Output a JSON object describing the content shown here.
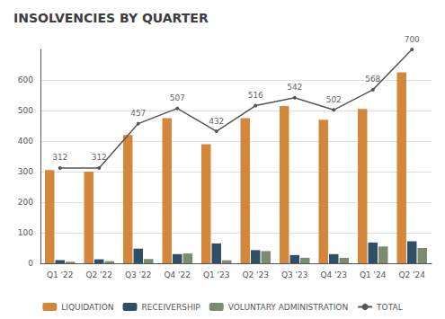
{
  "chart_data": {
    "type": "bar",
    "title": "INSOLVENCIES BY QUARTER",
    "categories": [
      "Q1 '22",
      "Q2 '22",
      "Q3 '22",
      "Q4 '22",
      "Q1 '23",
      "Q2 '23",
      "Q3 '23",
      "Q4 '23",
      "Q1 '24",
      "Q2 '24"
    ],
    "series": [
      {
        "name": "LIQUIDATION",
        "color": "#d4873a",
        "values": [
          305,
          300,
          420,
          475,
          390,
          475,
          515,
          470,
          505,
          625
        ]
      },
      {
        "name": "RECEIVERSHIP",
        "color": "#2e4f65",
        "values": [
          10,
          13,
          48,
          30,
          65,
          43,
          27,
          30,
          68,
          72
        ]
      },
      {
        "name": "VOLUNTARY ADMINISTRATION",
        "color": "#7d8b6f",
        "values": [
          5,
          7,
          14,
          32,
          10,
          40,
          18,
          18,
          55,
          50
        ]
      },
      {
        "name": "TOTAL",
        "type": "line",
        "color": "#555555",
        "data_labels": true,
        "values": [
          312,
          312,
          457,
          507,
          432,
          516,
          542,
          502,
          568,
          700
        ]
      }
    ],
    "ylim": [
      0,
      700
    ],
    "yticks": [
      0,
      100,
      200,
      300,
      400,
      500,
      600
    ],
    "grid": true,
    "legend": "bottom"
  }
}
